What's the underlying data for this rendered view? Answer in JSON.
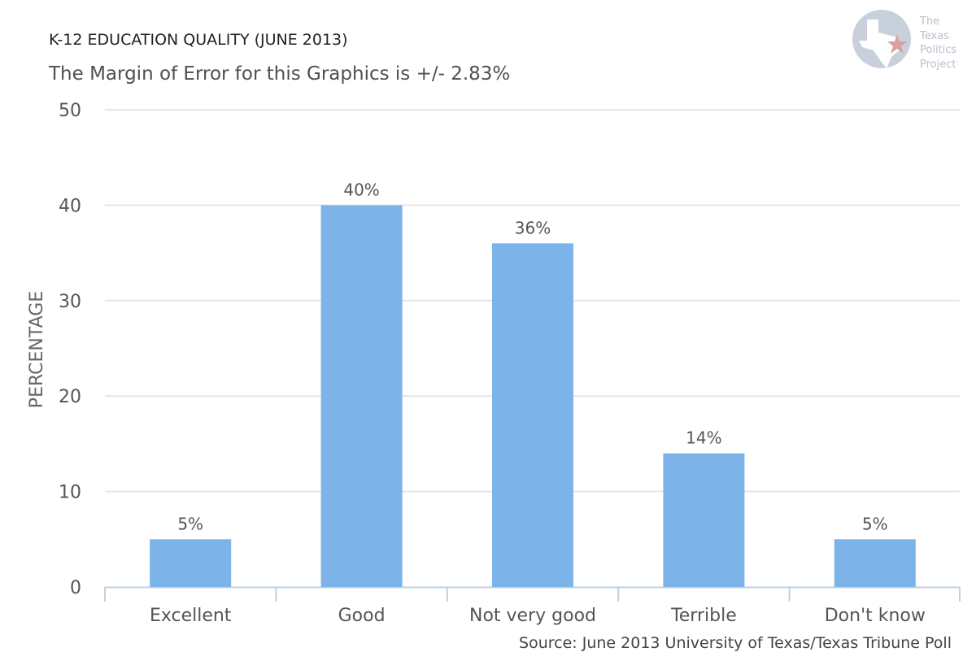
{
  "header": {
    "title": "K-12 EDUCATION QUALITY (JUNE 2013)",
    "subtitle": "The Margin of Error for this Graphics is +/- 2.83%"
  },
  "logo": {
    "lines": [
      "The",
      "Texas",
      "Politics",
      "Project"
    ],
    "icon": "texas-map-star-icon"
  },
  "source": "Source: June 2013 University of Texas/Texas Tribune Poll",
  "colors": {
    "bar": "#7cb4ea",
    "grid": "#e6e6e6",
    "axis": "#c0d0e0",
    "text": "#555555"
  },
  "chart_data": {
    "type": "bar",
    "categories": [
      "Excellent",
      "Good",
      "Not very good",
      "Terrible",
      "Don't know"
    ],
    "values": [
      5,
      40,
      36,
      14,
      5
    ],
    "data_labels": [
      "5%",
      "40%",
      "36%",
      "14%",
      "5%"
    ],
    "ylabel": "PERCENTAGE",
    "ylim": [
      0,
      50
    ],
    "yticks": [
      0,
      10,
      20,
      30,
      40,
      50
    ],
    "grid": true,
    "legend": "none"
  }
}
